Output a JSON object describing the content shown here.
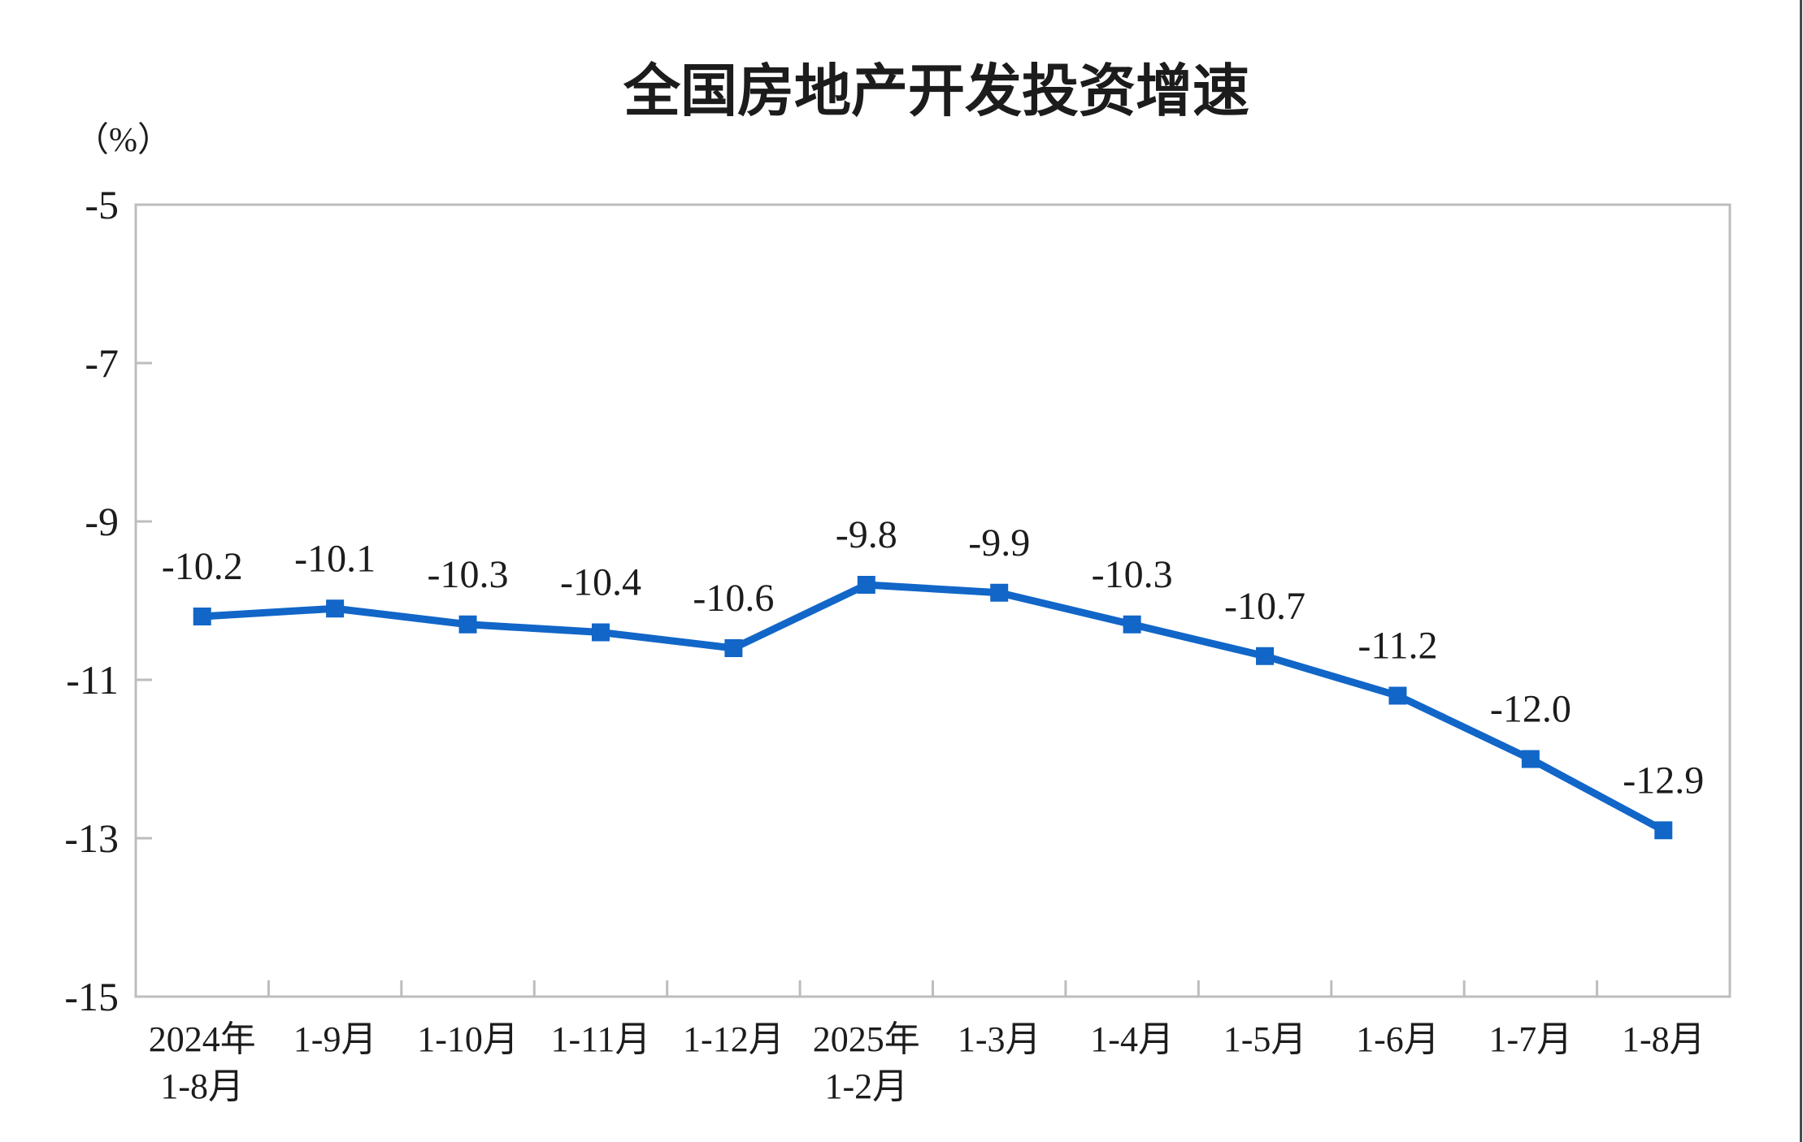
{
  "page": {
    "background_color": "#ffffff",
    "right_edge_color": "#4a4a4a"
  },
  "chart_data": {
    "type": "line",
    "title": "全国房地产开发投资增速",
    "unit_label": "（%）",
    "categories": [
      "2024年\n1-8月",
      "1-9月",
      "1-10月",
      "1-11月",
      "1-12月",
      "2025年\n1-2月",
      "1-3月",
      "1-4月",
      "1-5月",
      "1-6月",
      "1-7月",
      "1-8月"
    ],
    "values": [
      -10.2,
      -10.1,
      -10.3,
      -10.4,
      -10.6,
      -9.8,
      -9.9,
      -10.3,
      -10.7,
      -11.2,
      -12.0,
      -12.9
    ],
    "data_labels": [
      "-10.2",
      "-10.1",
      "-10.3",
      "-10.4",
      "-10.6",
      "-9.8",
      "-9.9",
      "-10.3",
      "-10.7",
      "-11.2",
      "-12.0",
      "-12.9"
    ],
    "y_ticks": [
      -5,
      -7,
      -9,
      -11,
      -13,
      -15
    ],
    "y_tick_labels": [
      "-5",
      "-7",
      "-9",
      "-11",
      "-13",
      "-15"
    ],
    "ylim": [
      -15,
      -5
    ],
    "grid": false,
    "legend": "none",
    "series_name": "全国房地产开发投资增速",
    "series_color": "#1166C8",
    "axis_color": "#BDBDBD",
    "text_color": "#1c1c1c"
  }
}
